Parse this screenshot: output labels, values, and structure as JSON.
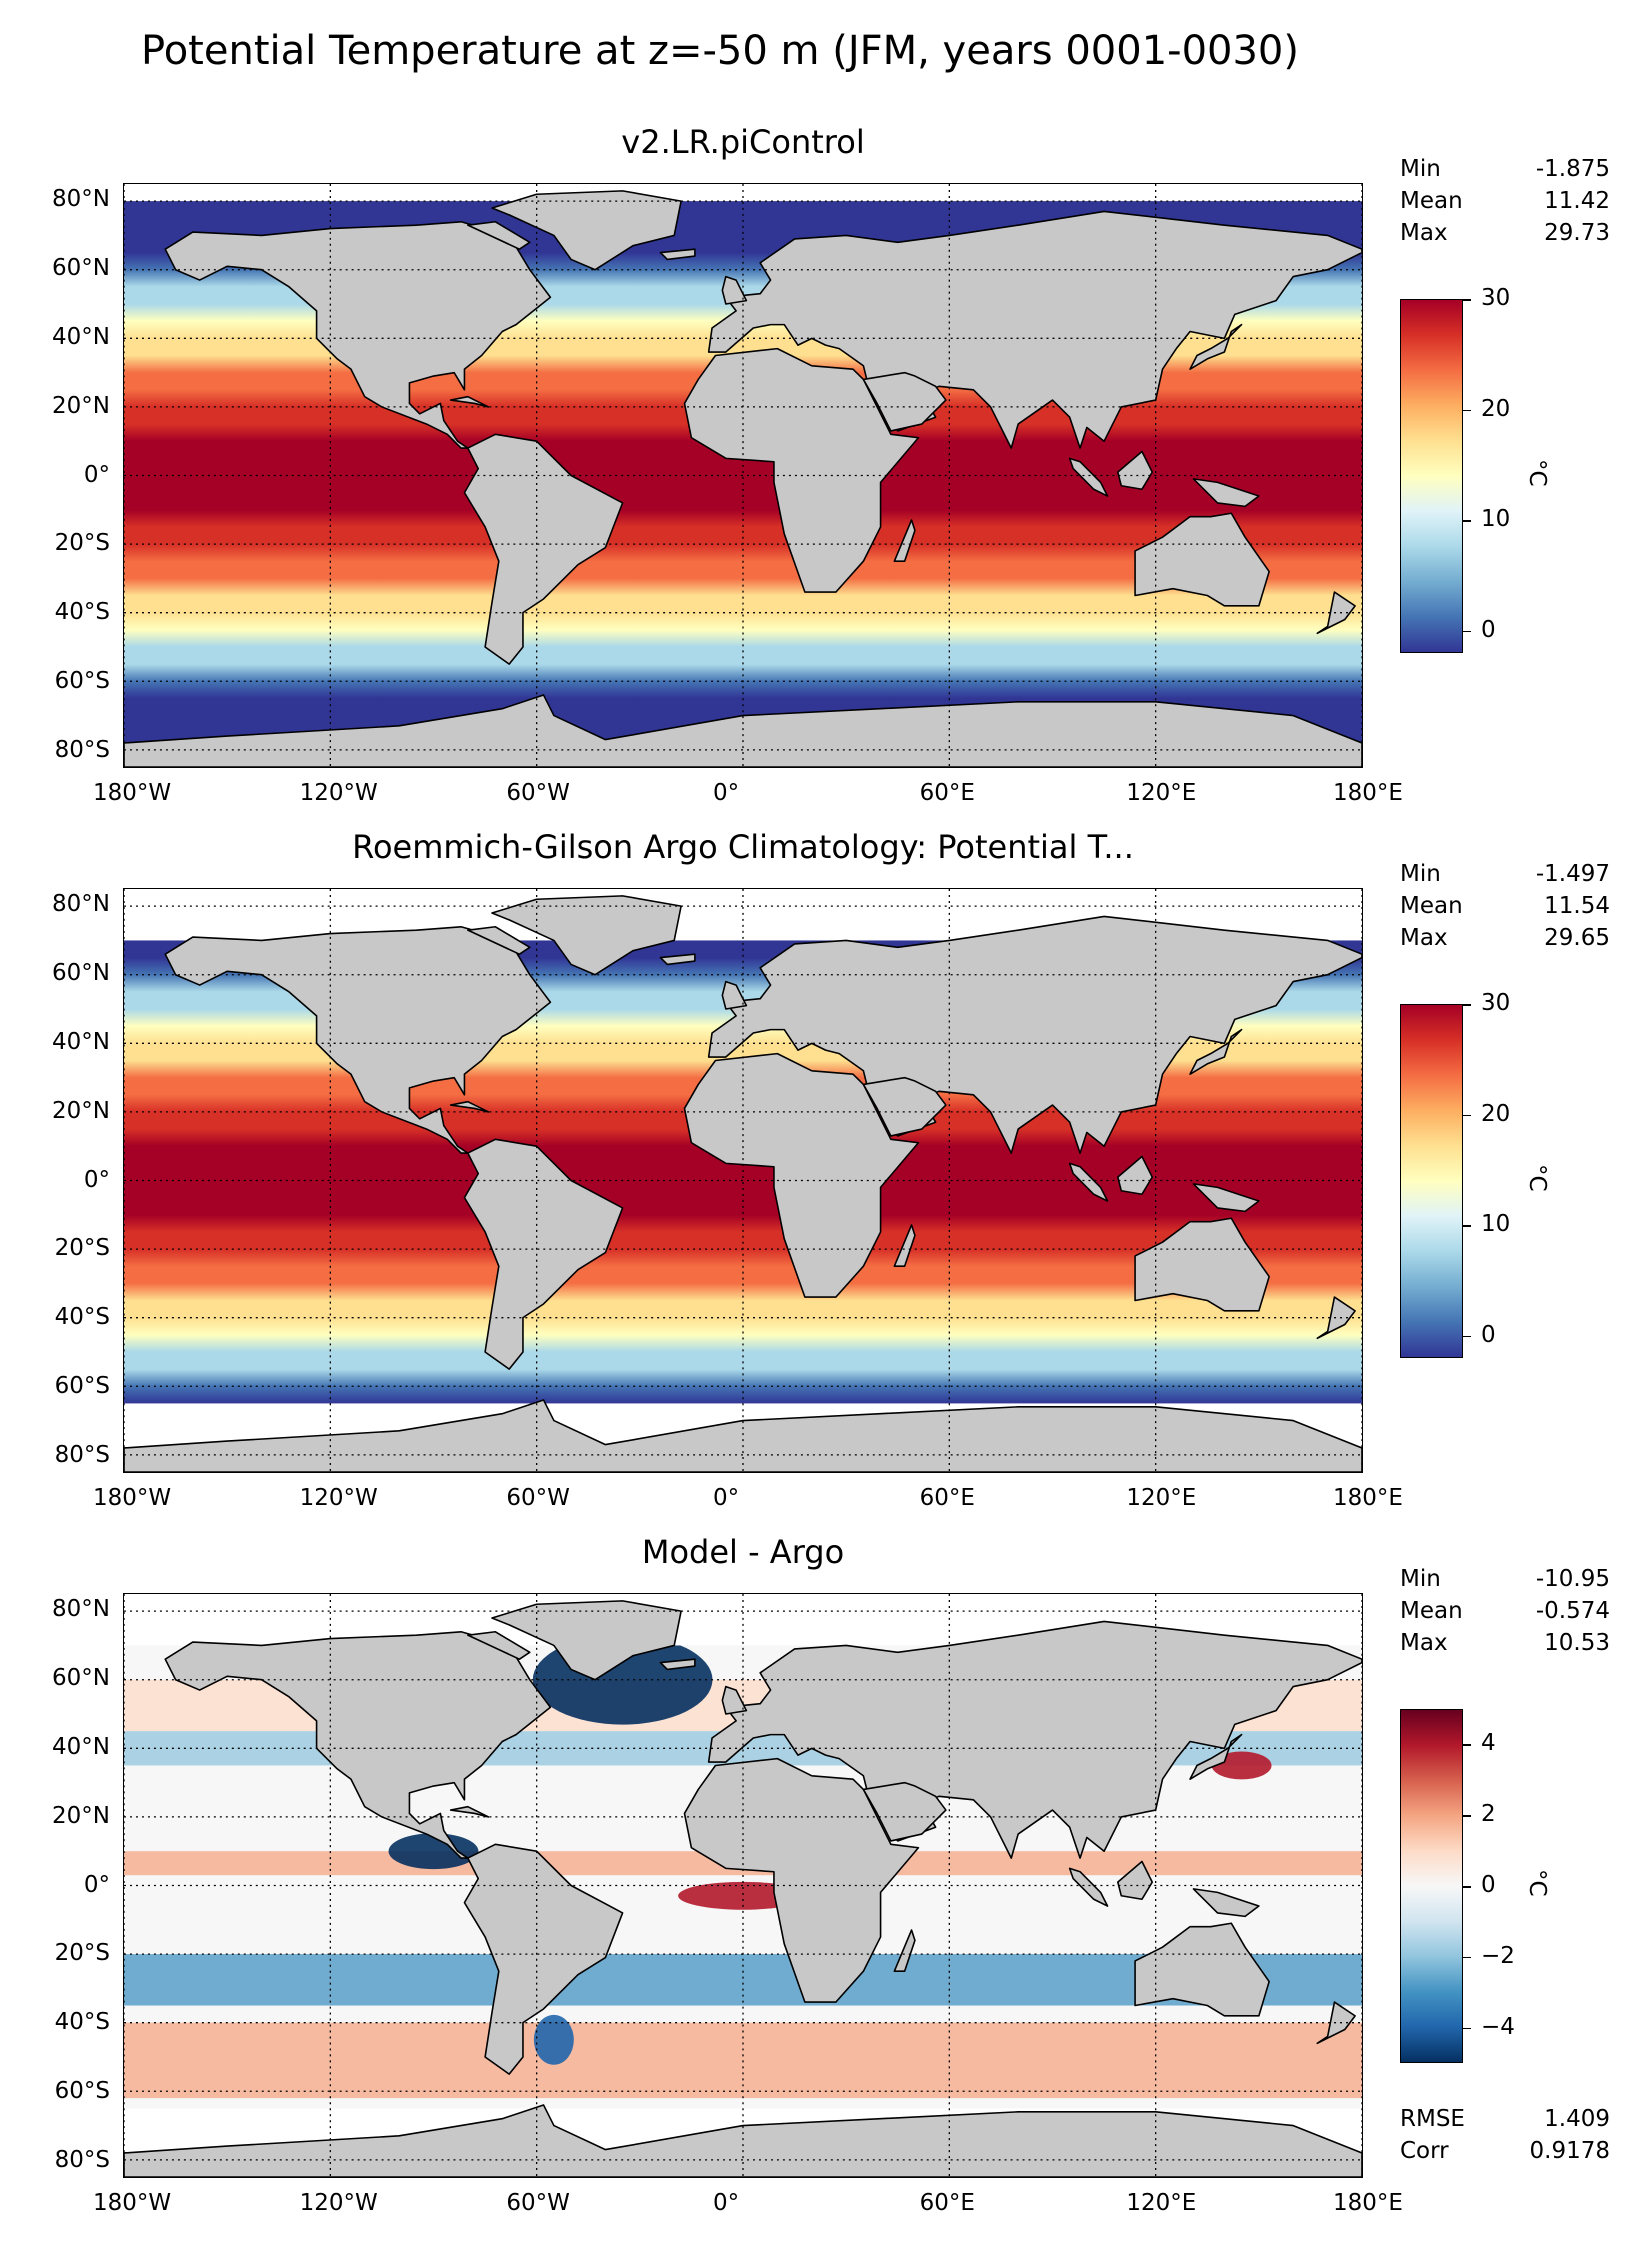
{
  "figure_title": "Potential Temperature at z=-50 m (JFM, years 0001-0030)",
  "axes": {
    "lon_labels": [
      "180°W",
      "120°W",
      "60°W",
      "0°",
      "60°E",
      "120°E",
      "180°E"
    ],
    "lat_labels": [
      "80°N",
      "60°N",
      "40°N",
      "20°N",
      "0°",
      "20°S",
      "40°S",
      "60°S",
      "80°S"
    ]
  },
  "panels": [
    {
      "title": "v2.LR.piControl",
      "stats": [
        {
          "label": "Min",
          "value": "-1.875"
        },
        {
          "label": "Mean",
          "value": "11.42"
        },
        {
          "label": "Max",
          "value": "29.73"
        }
      ],
      "colorbar": {
        "ticks": [
          "30",
          "20",
          "10",
          "0"
        ],
        "range": [
          -2,
          30
        ],
        "unit": "°C",
        "colormap": "RdYlBu_r"
      },
      "bottom_stats": []
    },
    {
      "title": "Roemmich-Gilson Argo Climatology: Potential T...",
      "stats": [
        {
          "label": "Min",
          "value": "-1.497"
        },
        {
          "label": "Mean",
          "value": "11.54"
        },
        {
          "label": "Max",
          "value": "29.65"
        }
      ],
      "colorbar": {
        "ticks": [
          "30",
          "20",
          "10",
          "0"
        ],
        "range": [
          -2,
          30
        ],
        "unit": "°C",
        "colormap": "RdYlBu_r"
      },
      "bottom_stats": []
    },
    {
      "title": "Model - Argo",
      "stats": [
        {
          "label": "Min",
          "value": "-10.95"
        },
        {
          "label": "Mean",
          "value": "-0.574"
        },
        {
          "label": "Max",
          "value": "10.53"
        }
      ],
      "colorbar": {
        "ticks": [
          "4",
          "2",
          "0",
          "−2",
          "−4"
        ],
        "range": [
          -5,
          5
        ],
        "unit": "°C",
        "colormap": "RdBu_r"
      },
      "bottom_stats": [
        {
          "label": "RMSE",
          "value": "1.409"
        },
        {
          "label": "Corr",
          "value": "0.9178"
        }
      ]
    }
  ],
  "colors": {
    "land": "#c8c8c8",
    "no_data": "#ffffff",
    "seq_scale": [
      "#313695",
      "#4575b4",
      "#74add1",
      "#abd9e9",
      "#e0f3f8",
      "#ffffbf",
      "#fee090",
      "#fdae61",
      "#f46d43",
      "#d73027",
      "#a50026"
    ],
    "div_scale": [
      "#053061",
      "#2166ac",
      "#4393c3",
      "#92c5de",
      "#d1e5f0",
      "#f7f7f7",
      "#fddbc7",
      "#f4a582",
      "#d6604d",
      "#b2182b",
      "#67001f"
    ]
  }
}
